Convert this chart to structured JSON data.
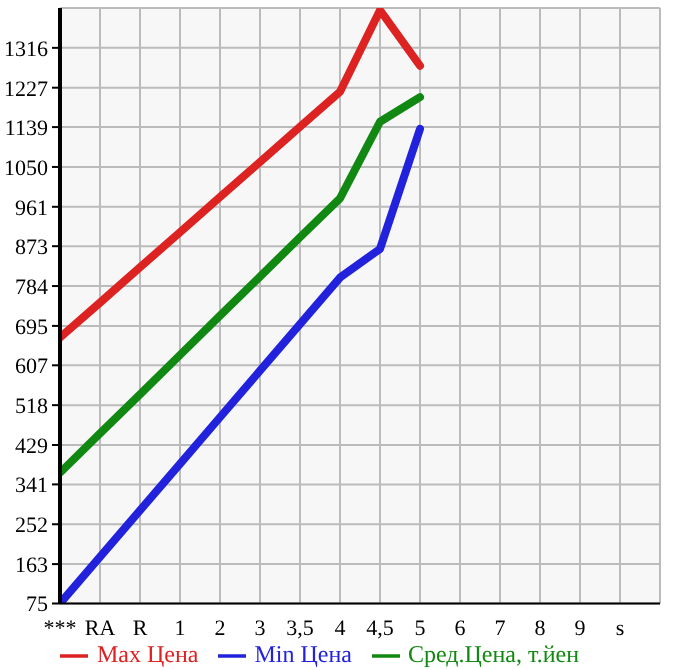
{
  "chart_data": {
    "type": "line",
    "categories": [
      "***",
      "RA",
      "R",
      "1",
      "2",
      "3",
      "3,5",
      "4",
      "4,5",
      "5",
      "6",
      "7",
      "8",
      "9",
      "s",
      null
    ],
    "series": [
      {
        "name": "Max Цена",
        "color": "#dd2222",
        "values": [
          669,
          747,
          826,
          904,
          983,
          1061,
          1140,
          1218,
          1400,
          1276,
          null,
          null,
          null,
          null,
          null,
          null
        ]
      },
      {
        "name": "Min Цена",
        "color": "#2222dd",
        "values": [
          75,
          179,
          283,
          387,
          491,
          595,
          699,
          803,
          867,
          1135,
          null,
          null,
          null,
          null,
          null,
          null
        ]
      },
      {
        "name": "Сред.Цена, т.йен",
        "color": "#118811",
        "values": [
          367,
          455,
          542,
          630,
          718,
          805,
          893,
          980,
          1151,
          1206,
          null,
          null,
          null,
          null,
          null,
          null
        ]
      }
    ],
    "ylim": [
      75,
      1405
    ],
    "yticks": [
      75,
      163,
      252,
      341,
      429,
      518,
      607,
      695,
      784,
      873,
      961,
      1050,
      1139,
      1227,
      1316
    ],
    "grid": true,
    "legend": "bottom",
    "marker": "none",
    "line_style": "solid"
  }
}
